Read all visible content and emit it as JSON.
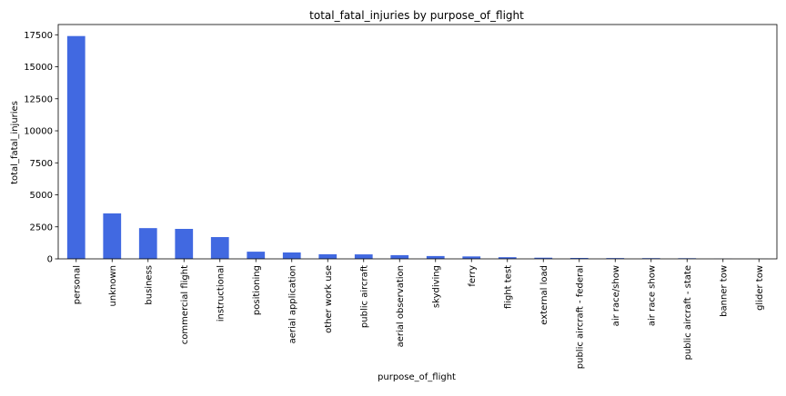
{
  "chart_data": {
    "type": "bar",
    "title": "total_fatal_injuries by purpose_of_flight",
    "xlabel": "purpose_of_flight",
    "ylabel": "total_fatal_injuries",
    "ylim": [
      0,
      18300
    ],
    "yticks": [
      0,
      2500,
      5000,
      7500,
      10000,
      12500,
      15000,
      17500
    ],
    "bar_color": "#4169E1",
    "grid": false,
    "categories": [
      "personal",
      "unknown",
      "business",
      "commercial flight",
      "instructional",
      "positioning",
      "aerial application",
      "other work use",
      "public aircraft",
      "aerial observation",
      "skydiving",
      "ferry",
      "flight test",
      "external load",
      "public aircraft - federal",
      "air race/show",
      "air race show",
      "public aircraft - state",
      "banner tow",
      "glider tow"
    ],
    "values": [
      17400,
      3550,
      2400,
      2340,
      1700,
      560,
      500,
      360,
      350,
      290,
      220,
      190,
      130,
      90,
      70,
      60,
      55,
      50,
      10,
      5
    ]
  }
}
